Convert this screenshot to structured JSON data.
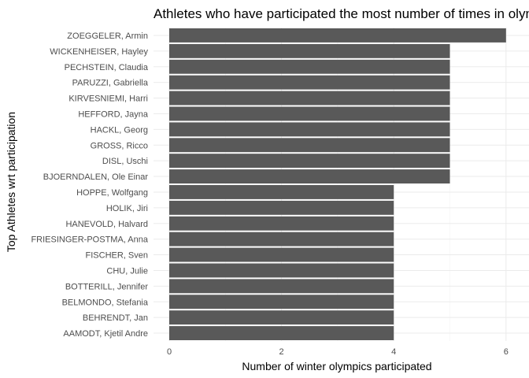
{
  "chart_data": {
    "type": "bar",
    "orientation": "horizontal",
    "title": "Athletes who have participated the most number of times in olympics",
    "xlabel": "Number of winter olympics participated",
    "ylabel": "Top Athletes wrt participation",
    "xlim": [
      0,
      6
    ],
    "x_ticks": [
      "0",
      "2",
      "4",
      "6"
    ],
    "grid": true,
    "bar_color": "#595959",
    "categories": [
      "ZOEGGELER, Armin",
      "WICKENHEISER, Hayley",
      "PECHSTEIN, Claudia",
      "PARUZZI, Gabriella",
      "KIRVESNIEMI, Harri",
      "HEFFORD, Jayna",
      "HACKL, Georg",
      "GROSS, Ricco",
      "DISL, Uschi",
      "BJOERNDALEN, Ole Einar",
      "HOPPE, Wolfgang",
      "HOLIK, Jiri",
      "HANEVOLD, Halvard",
      "FRIESINGER-POSTMA, Anna",
      "FISCHER, Sven",
      "CHU, Julie",
      "BOTTERILL, Jennifer",
      "BELMONDO, Stefania",
      "BEHRENDT, Jan",
      "AAMODT, Kjetil Andre"
    ],
    "values": [
      6,
      5,
      5,
      5,
      5,
      5,
      5,
      5,
      5,
      5,
      4,
      4,
      4,
      4,
      4,
      4,
      4,
      4,
      4,
      4
    ]
  }
}
